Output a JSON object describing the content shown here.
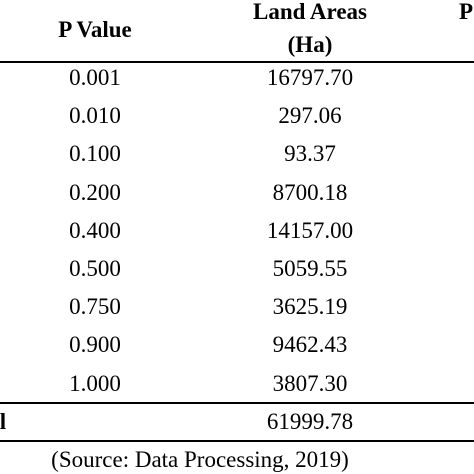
{
  "table": {
    "header": {
      "p_value": "P Value",
      "land_areas": [
        "Land Areas",
        "(Ha)"
      ],
      "cut_column": "P"
    },
    "rows": [
      [
        "0.001",
        "16797.70"
      ],
      [
        "0.010",
        "297.06"
      ],
      [
        "0.100",
        "93.37"
      ],
      [
        "0.200",
        "8700.18"
      ],
      [
        "0.400",
        "14157.00"
      ],
      [
        "0.500",
        "5059.55"
      ],
      [
        "0.750",
        "3625.19"
      ],
      [
        "0.900",
        "9462.43"
      ],
      [
        "1.000",
        "3807.30"
      ]
    ],
    "total": {
      "label": "l",
      "value": "61999.78"
    }
  },
  "source": "(Source: Data Processing, 2019)"
}
